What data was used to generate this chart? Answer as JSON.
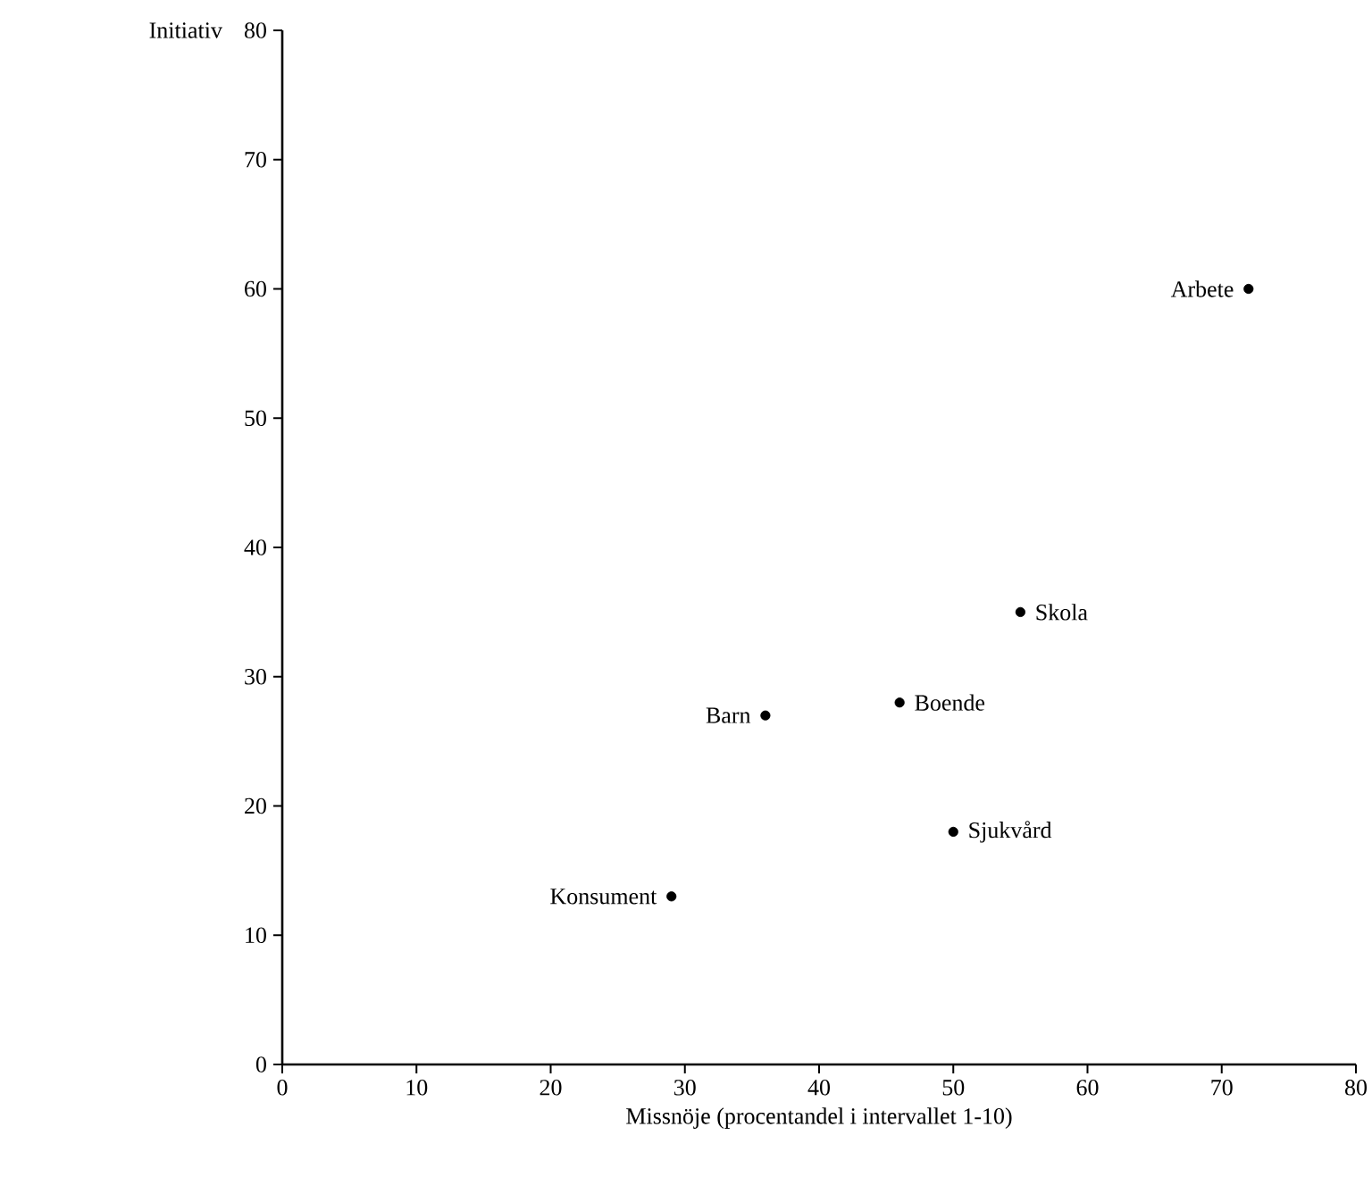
{
  "chart_data": {
    "type": "scatter",
    "xlabel": "Missnöje (procentandel i intervallet 1-10)",
    "ylabel": "Initiativ",
    "x": [
      72,
      55,
      36,
      46,
      50,
      29
    ],
    "values": [
      60,
      35,
      27,
      28,
      18,
      13
    ],
    "color": "#000000",
    "marker": "circle",
    "xlim": [
      0,
      80
    ],
    "ylim": [
      0,
      80
    ],
    "xticks": [
      0,
      10,
      20,
      30,
      40,
      50,
      60,
      70,
      80
    ],
    "yticks": [
      0,
      10,
      20,
      30,
      40,
      50,
      60,
      70,
      80
    ],
    "annotations": [
      {
        "text": "Arbete",
        "x": 72,
        "y": 60
      },
      {
        "text": "Skola",
        "x": 55,
        "y": 35
      },
      {
        "text": "Barn",
        "x": 36,
        "y": 27
      },
      {
        "text": "Boende",
        "x": 46,
        "y": 28
      },
      {
        "text": "Sjukvård",
        "x": 50,
        "y": 18
      },
      {
        "text": "Konsument",
        "x": 29,
        "y": 13
      }
    ]
  }
}
